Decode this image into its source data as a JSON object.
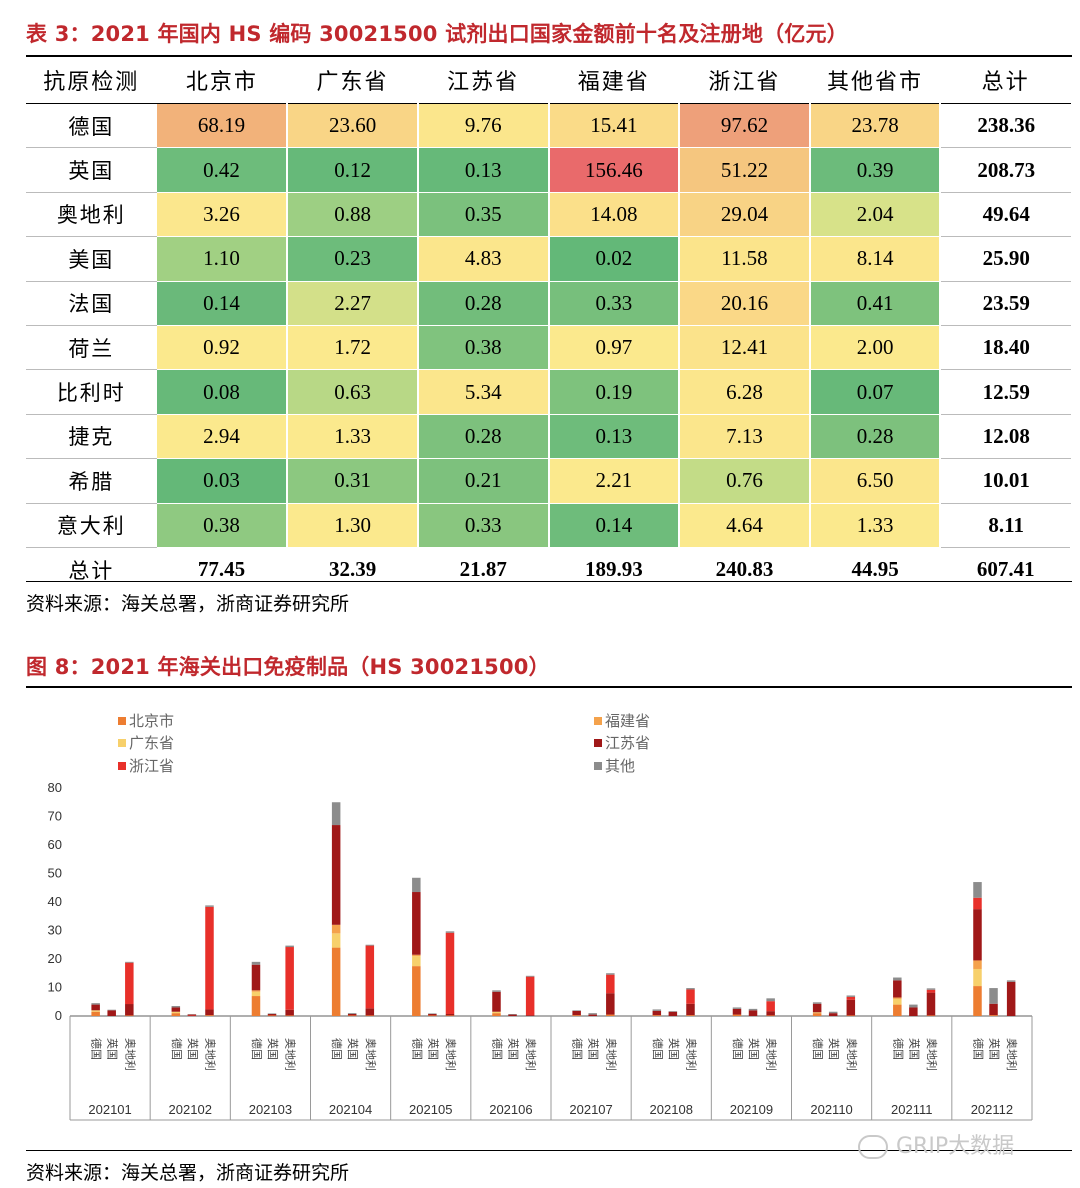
{
  "table": {
    "title": "表 3：2021 年国内 HS 编码 30021500 试剂出口国家金额前十名及注册地（亿元）",
    "headers": [
      "抗原检测",
      "北京市",
      "广东省",
      "江苏省",
      "福建省",
      "浙江省",
      "其他省市",
      "总计"
    ],
    "rows": [
      {
        "label": "德国",
        "values": [
          "68.19",
          "23.60",
          "9.76",
          "15.41",
          "97.62",
          "23.78"
        ],
        "total": "238.36",
        "colors": [
          "#f2b27a",
          "#f9d586",
          "#fbe68c",
          "#fadb88",
          "#eea07a",
          "#f9d586"
        ]
      },
      {
        "label": "英国",
        "values": [
          "0.42",
          "0.12",
          "0.13",
          "156.46",
          "51.22",
          "0.39"
        ],
        "total": "208.73",
        "colors": [
          "#6dbc7b",
          "#66b979",
          "#66b979",
          "#e96a6b",
          "#f5c67f",
          "#6cbb7b"
        ]
      },
      {
        "label": "奥地利",
        "values": [
          "3.26",
          "0.88",
          "0.35",
          "14.08",
          "29.04",
          "2.04"
        ],
        "total": "49.64",
        "colors": [
          "#fbe78d",
          "#9dcf83",
          "#7bc17d",
          "#fbe08a",
          "#f8d385",
          "#d7e289"
        ]
      },
      {
        "label": "美国",
        "values": [
          "1.10",
          "0.23",
          "4.83",
          "0.02",
          "11.58",
          "8.14"
        ],
        "total": "25.90",
        "colors": [
          "#a1d083",
          "#6dbc7b",
          "#fbe68c",
          "#63b878",
          "#fbe48b",
          "#fbe68c"
        ]
      },
      {
        "label": "法国",
        "values": [
          "0.14",
          "2.27",
          "0.28",
          "0.33",
          "20.16",
          "0.41"
        ],
        "total": "23.59",
        "colors": [
          "#6ab97a",
          "#d3e089",
          "#72bd7b",
          "#77bf7c",
          "#fad887",
          "#7ec27d"
        ]
      },
      {
        "label": "荷兰",
        "values": [
          "0.92",
          "1.72",
          "0.38",
          "0.97",
          "12.41",
          "2.00"
        ],
        "total": "18.40",
        "colors": [
          "#fbe98d",
          "#fbe98d",
          "#80c37e",
          "#fbe98d",
          "#fbe38b",
          "#fbe98d"
        ]
      },
      {
        "label": "比利时",
        "values": [
          "0.08",
          "0.63",
          "5.34",
          "0.19",
          "6.28",
          "0.07"
        ],
        "total": "12.59",
        "colors": [
          "#67b979",
          "#b8d886",
          "#fbe68c",
          "#7ec27d",
          "#fbe68c",
          "#67b979"
        ]
      },
      {
        "label": "捷克",
        "values": [
          "2.94",
          "1.33",
          "0.28",
          "0.13",
          "7.13",
          "0.28"
        ],
        "total": "12.08",
        "colors": [
          "#fbe98d",
          "#fbe98d",
          "#7dc17d",
          "#6ebc7b",
          "#fbe68c",
          "#7dc17d"
        ]
      },
      {
        "label": "希腊",
        "values": [
          "0.03",
          "0.31",
          "0.21",
          "2.21",
          "0.76",
          "6.50"
        ],
        "total": "10.01",
        "colors": [
          "#64b878",
          "#8cc880",
          "#7dc17d",
          "#fbe98d",
          "#c3dc87",
          "#fbe68c"
        ]
      },
      {
        "label": "意大利",
        "values": [
          "0.38",
          "1.30",
          "0.33",
          "0.14",
          "4.64",
          "1.33"
        ],
        "total": "8.11",
        "colors": [
          "#8fc981",
          "#fbe98d",
          "#89c67f",
          "#6ebc7b",
          "#fbe98d",
          "#fbe98d"
        ]
      }
    ],
    "total_row": {
      "label": "总计",
      "values": [
        "77.45",
        "32.39",
        "21.87",
        "189.93",
        "240.83",
        "44.95"
      ],
      "total": "607.41"
    }
  },
  "source1": "资料来源：海关总署，浙商证券研究所",
  "figure": {
    "title": "图 8：2021 年海关出口免疫制品（HS 30021500）"
  },
  "source2": "资料来源：海关总署，浙商证券研究所",
  "watermark": "GRIP大数据",
  "chart_data": {
    "type": "bar",
    "stacked": true,
    "ylim": [
      0,
      80
    ],
    "yticks": [
      0,
      10,
      20,
      30,
      40,
      50,
      60,
      70,
      80
    ],
    "months": [
      "202101",
      "202102",
      "202103",
      "202104",
      "202105",
      "202106",
      "202107",
      "202108",
      "202109",
      "202110",
      "202111",
      "202112"
    ],
    "sub_categories": [
      "德国",
      "英国",
      "奥地利"
    ],
    "series": [
      {
        "name": "北京市",
        "color": "#ed7d31"
      },
      {
        "name": "广东省",
        "color": "#f7d06b"
      },
      {
        "name": "浙江省",
        "color": "#e8302a"
      },
      {
        "name": "福建省",
        "color": "#f4a24c"
      },
      {
        "name": "江苏省",
        "color": "#a01818"
      },
      {
        "name": "其他",
        "color": "#8c8c8c"
      }
    ],
    "stack_order": [
      "北京市",
      "广东省",
      "福建省",
      "江苏省",
      "浙江省",
      "其他"
    ],
    "values": [
      [
        [
          1.5,
          0.5,
          0,
          0,
          2,
          0.5
        ],
        [
          0,
          0,
          0,
          0,
          2,
          0.2
        ],
        [
          0.2,
          0,
          14.5,
          0,
          4,
          0.3
        ]
      ],
      [
        [
          1,
          0.5,
          0,
          0,
          1.5,
          0.5
        ],
        [
          0,
          0,
          0.3,
          0,
          0.2,
          0.2
        ],
        [
          0.3,
          0,
          36,
          0,
          2,
          0.5
        ]
      ],
      [
        [
          7,
          1.5,
          0,
          0.5,
          9,
          1
        ],
        [
          0.2,
          0,
          0,
          0,
          0.5,
          0.2
        ],
        [
          0.2,
          0,
          22,
          0,
          2,
          0.5
        ]
      ],
      [
        [
          24,
          5,
          0,
          3,
          35,
          8
        ],
        [
          0.2,
          0,
          0,
          0,
          0.5,
          0.3
        ],
        [
          0.2,
          0,
          22,
          0,
          2.5,
          0.3
        ]
      ],
      [
        [
          17.5,
          3.5,
          0,
          0.5,
          22,
          5
        ],
        [
          0.2,
          0,
          0,
          0,
          0.5,
          0.2
        ],
        [
          0.2,
          0,
          28.5,
          0,
          0.5,
          0.5
        ]
      ],
      [
        [
          1,
          0.5,
          0,
          0,
          7,
          0.5
        ],
        [
          0,
          0,
          0,
          0,
          0.5,
          0.2
        ],
        [
          0,
          0,
          13.5,
          0,
          0.3,
          0.3
        ]
      ],
      [
        [
          0.3,
          0,
          0,
          0,
          1.5,
          0.2
        ],
        [
          0,
          0,
          0,
          0,
          0.5,
          0.5
        ],
        [
          0.5,
          0,
          6.5,
          0,
          7.5,
          0.5
        ]
      ],
      [
        [
          0.3,
          0,
          0,
          0,
          1.5,
          0.5
        ],
        [
          0,
          0,
          0,
          0,
          1.5,
          0.2
        ],
        [
          0.3,
          0,
          5,
          0,
          4,
          0.5
        ]
      ],
      [
        [
          0.5,
          0,
          0,
          0,
          2,
          0.5
        ],
        [
          0,
          0,
          0,
          0,
          2,
          0.5
        ],
        [
          0.2,
          0,
          3.5,
          0,
          1.5,
          1
        ]
      ],
      [
        [
          1,
          0.3,
          0,
          0,
          3,
          0.5
        ],
        [
          0,
          0,
          0,
          0,
          1,
          0.5
        ],
        [
          0.2,
          0,
          1,
          0,
          5.5,
          0.5
        ]
      ],
      [
        [
          4,
          2,
          0,
          0.5,
          6,
          1
        ],
        [
          0,
          0,
          0,
          0,
          3,
          1
        ],
        [
          0.2,
          0,
          1,
          0,
          8,
          0.5
        ]
      ],
      [
        [
          10.5,
          6,
          4,
          3,
          18,
          5.5
        ],
        [
          0.3,
          0,
          0,
          0,
          4,
          5.5
        ],
        [
          0,
          0,
          0,
          0,
          12,
          0.5
        ]
      ]
    ]
  }
}
